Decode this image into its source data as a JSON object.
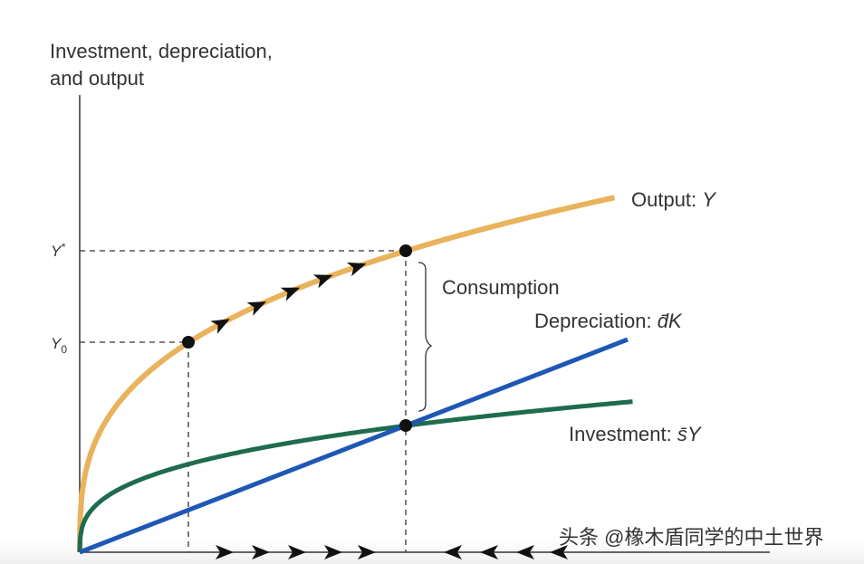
{
  "axis_label": {
    "line1": "Investment, depreciation,",
    "line2": "and output"
  },
  "curves": {
    "output": {
      "label": "Output:",
      "symbol": "Y"
    },
    "depreciation": {
      "label": "Depreciation:",
      "symbol": "d̄K"
    },
    "investment": {
      "label": "Investment:",
      "symbol": "s̄Y"
    }
  },
  "consumption": "Consumption",
  "y_marks": {
    "steady": {
      "base": "Y",
      "sup": "*"
    },
    "initial": {
      "base": "Y",
      "sub": "0"
    }
  },
  "watermark": "头条 @橡木盾同学的中土世界"
}
